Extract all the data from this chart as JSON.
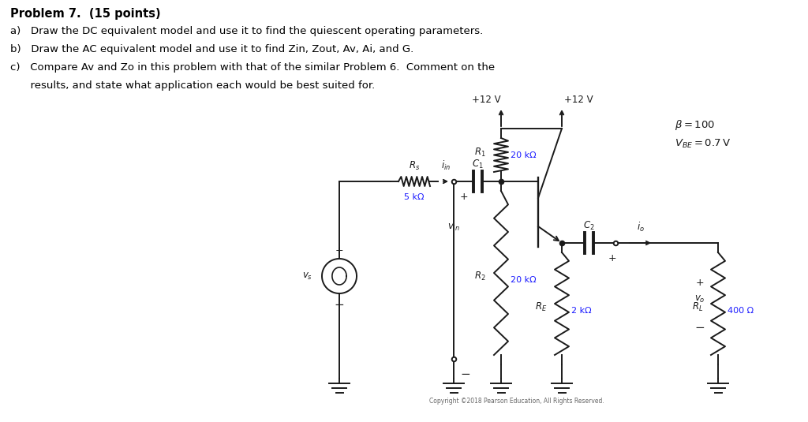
{
  "title_bold": "Problem 7.  (15 points)",
  "line_a": "a)   Draw the DC equivalent model and use it to find the quiescent operating parameters.",
  "line_b": "b)   Draw the AC equivalent model and use it to find Zin, Zout, Av, Ai, and G.",
  "line_c1": "c)   Compare Av and Zo in this problem with that of the similar Problem 6.  Comment on the",
  "line_c2": "      results, and state what application each would be best suited for.",
  "copyright": "Copyright ©2018 Pearson Education, All Rights Reserved.",
  "bg_color": "#ffffff",
  "circuit_color": "#1a1a1a",
  "text_color": "#000000",
  "label_color": "#1a1aff",
  "fig_width": 10.24,
  "fig_height": 5.35,
  "dpi": 100
}
